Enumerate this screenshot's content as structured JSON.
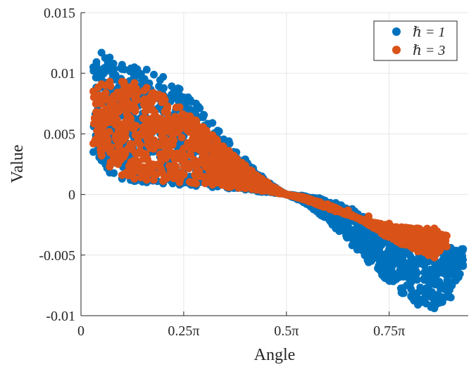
{
  "chart_data": {
    "type": "scatter",
    "xlabel": "Angle",
    "ylabel": "Value",
    "xlim": [
      0,
      0.9425
    ],
    "ylim": [
      -0.01,
      0.015
    ],
    "x_ticks": [
      {
        "value": 0,
        "label": "0"
      },
      {
        "value": 0.25,
        "label": "0.25π"
      },
      {
        "value": 0.5,
        "label": "0.5π"
      },
      {
        "value": 0.75,
        "label": "0.75π"
      }
    ],
    "y_ticks": [
      {
        "value": -0.01,
        "label": "-0.01"
      },
      {
        "value": -0.005,
        "label": "-0.005"
      },
      {
        "value": 0,
        "label": "0"
      },
      {
        "value": 0.005,
        "label": "0.005"
      },
      {
        "value": 0.01,
        "label": "0.01"
      },
      {
        "value": 0.015,
        "label": "0.015"
      }
    ],
    "x_unit": "π",
    "grid": true,
    "legend_position": "top-right",
    "series": [
      {
        "name": "ℏ = 1",
        "color": "#0072BD",
        "x": [
          0.03,
          0.05,
          0.07,
          0.1,
          0.13,
          0.16,
          0.2,
          0.24,
          0.28,
          0.32,
          0.36,
          0.4,
          0.44,
          0.48,
          0.5,
          0.54,
          0.58,
          0.62,
          0.66,
          0.7,
          0.74,
          0.78,
          0.82,
          0.86,
          0.9,
          0.93,
          0.03,
          0.05,
          0.07,
          0.1,
          0.13,
          0.16,
          0.2,
          0.24,
          0.28,
          0.32,
          0.36,
          0.4,
          0.44,
          0.48,
          0.5,
          0.54,
          0.58,
          0.62,
          0.66,
          0.7,
          0.74,
          0.78,
          0.82,
          0.86,
          0.9,
          0.93,
          0.05,
          0.1,
          0.15,
          0.2,
          0.25,
          0.3,
          0.35,
          0.4,
          0.45,
          0.55,
          0.6,
          0.65,
          0.7,
          0.75,
          0.8,
          0.85,
          0.9
        ],
        "y": [
          0.0105,
          0.0117,
          0.0113,
          0.0107,
          0.0105,
          0.0103,
          0.0097,
          0.0087,
          0.0075,
          0.0059,
          0.0044,
          0.0029,
          0.0015,
          0.0004,
          0.0,
          -0.0006,
          -0.0016,
          -0.0028,
          -0.0042,
          -0.0056,
          -0.0069,
          -0.0081,
          -0.0091,
          -0.0094,
          -0.0085,
          -0.0059,
          0.0035,
          0.0028,
          0.0018,
          0.0013,
          0.0011,
          0.001,
          0.0009,
          0.0008,
          0.0007,
          0.0006,
          0.0005,
          0.0004,
          0.0002,
          0.0001,
          0.0,
          -0.0001,
          -0.0003,
          -0.0007,
          -0.0012,
          -0.0021,
          -0.003,
          -0.0036,
          -0.004,
          -0.0042,
          -0.0044,
          -0.0045,
          0.0075,
          0.0072,
          0.0065,
          0.0058,
          0.0048,
          0.0038,
          0.0028,
          0.0018,
          0.0009,
          -0.0008,
          -0.0016,
          -0.0025,
          -0.0034,
          -0.0045,
          -0.0056,
          -0.0062,
          -0.0066
        ]
      },
      {
        "name": "ℏ = 3",
        "color": "#D95319",
        "x": [
          0.03,
          0.05,
          0.07,
          0.1,
          0.13,
          0.16,
          0.2,
          0.24,
          0.28,
          0.32,
          0.36,
          0.4,
          0.44,
          0.48,
          0.5,
          0.54,
          0.58,
          0.62,
          0.66,
          0.7,
          0.74,
          0.78,
          0.82,
          0.86,
          0.89,
          0.03,
          0.05,
          0.07,
          0.1,
          0.13,
          0.16,
          0.2,
          0.24,
          0.28,
          0.32,
          0.36,
          0.4,
          0.44,
          0.48,
          0.5,
          0.54,
          0.58,
          0.62,
          0.66,
          0.7,
          0.74,
          0.78,
          0.82,
          0.86,
          0.89,
          0.05,
          0.1,
          0.15,
          0.2,
          0.25,
          0.3,
          0.35,
          0.4,
          0.45,
          0.55,
          0.6,
          0.65,
          0.7,
          0.75,
          0.8,
          0.85
        ],
        "y": [
          0.0085,
          0.0091,
          0.0093,
          0.0093,
          0.0092,
          0.0088,
          0.0081,
          0.0072,
          0.0061,
          0.0049,
          0.0036,
          0.0024,
          0.0013,
          0.0004,
          0.0,
          -0.0004,
          -0.0009,
          -0.0014,
          -0.0018,
          -0.0022,
          -0.0025,
          -0.0027,
          -0.0028,
          -0.0028,
          -0.0034,
          0.0042,
          0.0032,
          0.0023,
          0.0016,
          0.0013,
          0.0012,
          0.0011,
          0.001,
          0.0009,
          0.0008,
          0.0006,
          0.0005,
          0.0003,
          0.0001,
          0.0,
          -0.0002,
          -0.0006,
          -0.0011,
          -0.0017,
          -0.0025,
          -0.0034,
          -0.0041,
          -0.0047,
          -0.0052,
          -0.0043,
          0.006,
          0.0058,
          0.0052,
          0.0046,
          0.0038,
          0.003,
          0.0023,
          0.0015,
          0.0008,
          -0.0003,
          -0.0008,
          -0.0013,
          -0.0018,
          -0.0024,
          -0.0031,
          -0.0036
        ]
      }
    ]
  }
}
